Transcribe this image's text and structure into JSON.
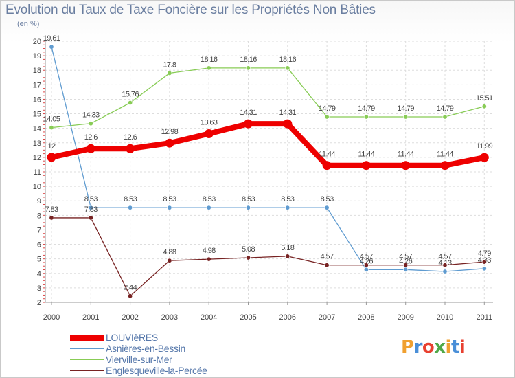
{
  "title": "Evolution du Taux de Taxe Foncière sur les Propriétés Non Bâties",
  "unit": "(en %)",
  "logo": {
    "letters": [
      "P",
      "r",
      "o",
      "x",
      "i",
      "t",
      "i"
    ],
    "colors": [
      "#f0a030",
      "#4a8fd8",
      "#e84030",
      "#50a848",
      "#f0a030",
      "#4a8fd8",
      "#e84030"
    ]
  },
  "chart_data": {
    "type": "line",
    "title": "Evolution du Taux de Taxe Foncière sur les Propriétés Non Bâties",
    "ylabel": "(en %)",
    "xlabel": "",
    "ylim": [
      2,
      20
    ],
    "yticks": [
      2,
      3,
      4,
      5,
      6,
      7,
      8,
      9,
      10,
      11,
      12,
      13,
      14,
      15,
      16,
      17,
      18,
      19,
      20
    ],
    "x": [
      "2000",
      "2001",
      "2002",
      "2003",
      "2004",
      "2005",
      "2006",
      "2007",
      "2008",
      "2009",
      "2010",
      "2011"
    ],
    "grid": true,
    "legend_position": "bottom-left",
    "series": [
      {
        "name": "LOUVIèRES",
        "color": "#ee0000",
        "values": [
          12,
          12.6,
          12.6,
          12.98,
          13.63,
          14.31,
          14.31,
          11.44,
          11.44,
          11.44,
          11.44,
          11.99
        ],
        "labels": [
          "12",
          "12.6",
          "12.6",
          "12.98",
          "13.63",
          "14.31",
          "14.31",
          "11.44",
          "11.44",
          "11.44",
          "11.44",
          "11.99"
        ]
      },
      {
        "name": "Asnières-en-Bessin",
        "color": "#5f9bd0",
        "values": [
          19.61,
          8.53,
          8.53,
          8.53,
          8.53,
          8.53,
          8.53,
          8.53,
          4.26,
          4.26,
          4.13,
          4.33
        ],
        "labels": [
          "19.61",
          "8.53",
          "8.53",
          "8.53",
          "8.53",
          "8.53",
          "8.53",
          "8.53",
          "4.26",
          "4.26",
          "4.13",
          "4.33"
        ]
      },
      {
        "name": "Vierville-sur-Mer",
        "color": "#88cc55",
        "values": [
          14.05,
          14.33,
          15.76,
          17.8,
          18.16,
          18.16,
          18.16,
          14.79,
          14.79,
          14.79,
          14.79,
          15.51
        ],
        "labels": [
          "14.05",
          "14.33",
          "15.76",
          "17.8",
          "18.16",
          "18.16",
          "18.16",
          "14.79",
          "14.79",
          "14.79",
          "14.79",
          "15.51"
        ]
      },
      {
        "name": "Englesqueville-la-Percée",
        "color": "#772222",
        "values": [
          7.83,
          7.83,
          2.44,
          4.88,
          4.98,
          5.08,
          5.18,
          4.57,
          4.57,
          4.57,
          4.57,
          4.79
        ],
        "labels": [
          "7.83",
          "7.83",
          "2.44",
          "4.88",
          "4.98",
          "5.08",
          "5.18",
          "4.57",
          "4.57",
          "4.57",
          "4.57",
          "4.79"
        ]
      }
    ]
  }
}
